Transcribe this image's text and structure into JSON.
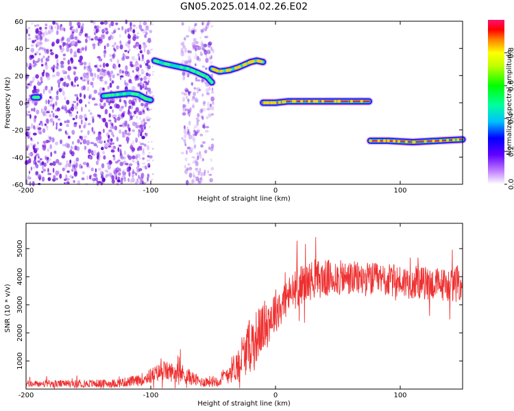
{
  "title": "GN05.2025.014.02.26.E02",
  "chart_data": [
    {
      "type": "heatmap",
      "xlabel": "Height of straight line (km)",
      "ylabel": "Frequency (Hz)",
      "xlim": [
        -200,
        150
      ],
      "ylim": [
        -60,
        60
      ],
      "xticks": [
        "-200",
        "-100",
        "0",
        "100"
      ],
      "xtick_values": [
        -200,
        -100,
        0,
        100
      ],
      "yticks": [
        "-60",
        "-40",
        "-20",
        "0",
        "20",
        "40",
        "60"
      ],
      "ytick_values": [
        -60,
        -40,
        -20,
        0,
        20,
        40,
        60
      ],
      "colorbar": {
        "label": "Normalized spectral amplitude",
        "ticks": [
          "0.0",
          "0.2",
          "0.4",
          "0.6",
          "0.8"
        ],
        "tick_values": [
          0.0,
          0.2,
          0.4,
          0.6,
          0.8
        ],
        "range": [
          0,
          1
        ]
      },
      "traces": [
        {
          "x": [
            -194,
            -190
          ],
          "y": [
            4,
            4
          ]
        },
        {
          "x": [
            -138,
            -127,
            -117,
            -110,
            -104,
            -100
          ],
          "y": [
            5,
            6,
            7,
            6,
            3,
            2
          ]
        },
        {
          "x": [
            -97,
            -90,
            -80,
            -70,
            -62,
            -55,
            -51
          ],
          "y": [
            31,
            29,
            27,
            25,
            22,
            19,
            15
          ]
        },
        {
          "x": [
            -51,
            -45,
            -37,
            -30,
            -25,
            -20,
            -15,
            -10
          ],
          "y": [
            25,
            23,
            24,
            26,
            28,
            30,
            31,
            30
          ]
        },
        {
          "x": [
            -10,
            -5,
            0,
            10,
            30,
            50,
            75
          ],
          "y": [
            0,
            0,
            0,
            1,
            1,
            1,
            1
          ]
        },
        {
          "x": [
            76,
            90,
            110,
            130,
            150
          ],
          "y": [
            -28,
            -28,
            -29,
            -28,
            -27
          ]
        }
      ],
      "noise_regions": [
        {
          "x": [
            -200,
            -100
          ],
          "y": [
            -60,
            60
          ]
        },
        {
          "x": [
            -75,
            -50
          ],
          "y": [
            -60,
            60
          ]
        }
      ],
      "grid": false
    },
    {
      "type": "line",
      "xlabel": "Height of straight line (km)",
      "ylabel": "SNR (10 * v/v)",
      "xlim": [
        -200,
        150
      ],
      "ylim": [
        0,
        5900
      ],
      "xticks": [
        "-200",
        "-100",
        "0",
        "100"
      ],
      "xtick_values": [
        -200,
        -100,
        0,
        100
      ],
      "yticks": [
        "1000",
        "2000",
        "3000",
        "4000",
        "5000"
      ],
      "ytick_values": [
        1000,
        2000,
        3000,
        4000,
        5000
      ],
      "color": "#ee3030",
      "envelope_x": [
        -200,
        -130,
        -110,
        -90,
        -75,
        -60,
        -45,
        -30,
        -20,
        -10,
        0,
        10,
        20,
        30,
        50,
        80,
        110,
        140,
        150
      ],
      "envelope_y": [
        180,
        200,
        300,
        650,
        550,
        250,
        300,
        900,
        1600,
        2200,
        2800,
        3300,
        3700,
        3900,
        3950,
        3900,
        3800,
        3700,
        3800
      ],
      "noise_amplitude": [
        120,
        150,
        200,
        350,
        350,
        180,
        220,
        600,
        1000,
        900,
        800,
        700,
        700,
        700,
        650,
        600,
        600,
        600,
        700
      ],
      "grid": false
    }
  ]
}
